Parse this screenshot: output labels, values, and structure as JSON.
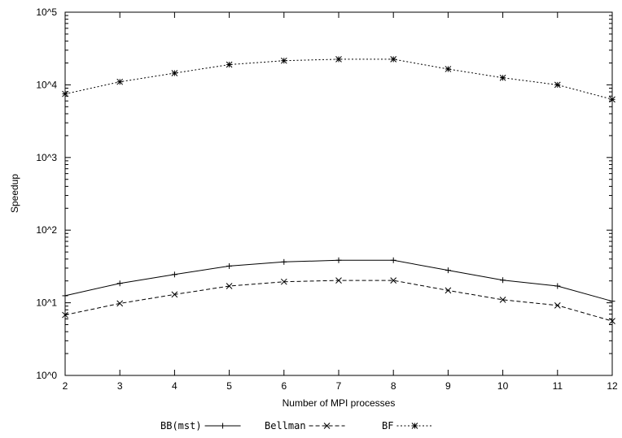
{
  "chart_data": {
    "type": "line",
    "xlabel": "Number of MPI processes",
    "ylabel": "Speedup",
    "x": [
      2,
      3,
      4,
      5,
      6,
      7,
      8,
      9,
      10,
      11,
      12
    ],
    "xlim": [
      2,
      12
    ],
    "yscale": "log",
    "ylim": [
      1,
      100000
    ],
    "ytick_labels": [
      "10^0",
      "10^1",
      "10^2",
      "10^3",
      "10^4",
      "10^5"
    ],
    "grid": false,
    "legend_position": "bottom-center",
    "series": [
      {
        "name": "BB(mst)",
        "marker": "plus",
        "line_style": "solid",
        "values": [
          12.5,
          18.5,
          24.5,
          32,
          36.5,
          38.5,
          38.5,
          28,
          20.5,
          17,
          10.5
        ]
      },
      {
        "name": "Bellman",
        "marker": "x",
        "line_style": "dashed",
        "values": [
          6.8,
          9.8,
          13,
          17,
          19.5,
          20.3,
          20.3,
          14.8,
          11,
          9.2,
          5.6
        ]
      },
      {
        "name": "BF",
        "marker": "asterisk",
        "line_style": "dotted",
        "values": [
          7500,
          11000,
          14500,
          19000,
          21500,
          22500,
          22500,
          16500,
          12500,
          10000,
          6300
        ]
      }
    ]
  }
}
